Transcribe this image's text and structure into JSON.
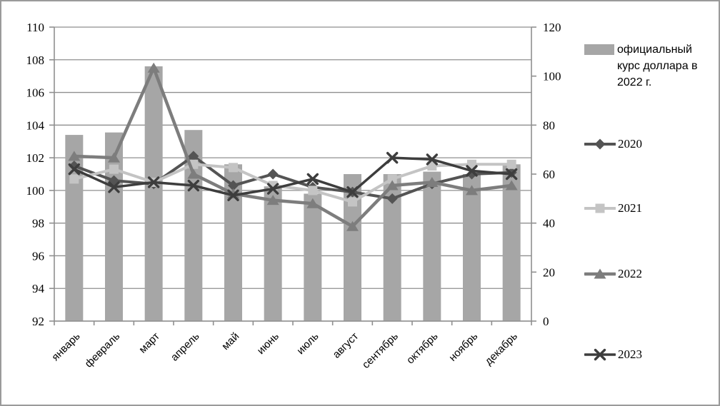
{
  "page": {
    "background_color": "#ffffff",
    "border_color": "#9a9a9a"
  },
  "chart_data": {
    "type": "combo-bar-line",
    "categories": [
      "январь",
      "февраль",
      "март",
      "апрель",
      "май",
      "июнь",
      "июль",
      "август",
      "сентябрь",
      "октябрь",
      "ноябрь",
      "декабрь"
    ],
    "bar_series": {
      "name": "официальный курс доллара в 2022 г.",
      "axis": "right",
      "color": "#a6a6a6",
      "values": [
        76,
        77,
        104,
        78,
        64,
        55,
        52,
        60,
        60,
        61,
        60,
        64
      ]
    },
    "line_series": [
      {
        "name": "2020",
        "marker": "diamond",
        "color": "#545454",
        "stroke_width": 4,
        "axis": "left",
        "values": [
          101.5,
          100.6,
          100.4,
          102.1,
          100.3,
          101.0,
          100.2,
          99.9,
          99.5,
          100.4,
          101.0,
          101.1
        ]
      },
      {
        "name": "2021",
        "marker": "square",
        "color": "#c4c4c4",
        "stroke_width": 4,
        "axis": "left",
        "values": [
          100.7,
          101.3,
          100.5,
          101.6,
          101.4,
          100.3,
          100.0,
          99.3,
          100.7,
          101.5,
          101.6,
          101.6
        ]
      },
      {
        "name": "2022",
        "marker": "triangle",
        "color": "#7d7d7d",
        "stroke_width": 4.5,
        "axis": "left",
        "values": [
          102.1,
          102.0,
          107.5,
          101.0,
          99.8,
          99.4,
          99.2,
          97.8,
          100.3,
          100.5,
          100.0,
          100.3
        ]
      },
      {
        "name": "2023",
        "marker": "x",
        "color": "#3d3d3d",
        "stroke_width": 3.5,
        "axis": "left",
        "values": [
          101.3,
          100.2,
          100.5,
          100.3,
          99.7,
          100.1,
          100.7,
          99.9,
          102.0,
          101.9,
          101.2,
          101.0
        ]
      }
    ],
    "left_axis": {
      "min": 92,
      "max": 110,
      "step": 2,
      "tick_labels": [
        "92",
        "94",
        "96",
        "98",
        "100",
        "102",
        "104",
        "106",
        "108",
        "110"
      ]
    },
    "right_axis": {
      "min": 0,
      "max": 120,
      "step": 20,
      "tick_labels": [
        "0",
        "20",
        "40",
        "60",
        "80",
        "100",
        "120"
      ]
    },
    "grid": true,
    "grid_color": "#8f8f8f",
    "axis_color": "#8f8f8f",
    "legend_position": "right"
  }
}
